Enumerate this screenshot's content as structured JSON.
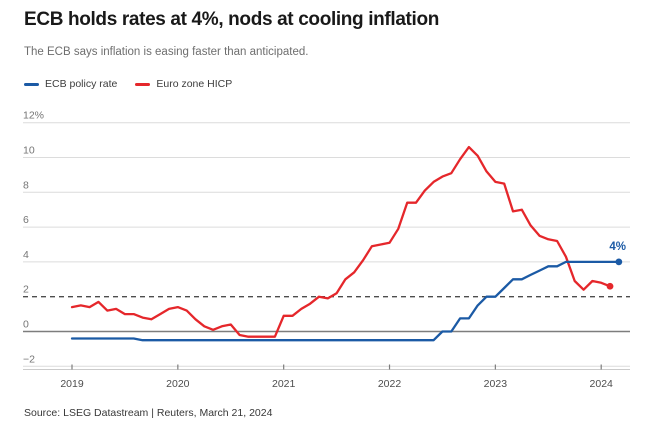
{
  "chart_data": {
    "type": "line",
    "title": "ECB holds rates at 4%, nods at cooling inflation",
    "subtitle": "The ECB says inflation is easing faster than anticipated.",
    "source": "Source: LSEG Datastream | Reuters, March 21, 2024",
    "x_unit": "month",
    "x_start": "2019-01",
    "x_tick_labels": [
      "2019",
      "2020",
      "2021",
      "2022",
      "2023",
      "2024"
    ],
    "y_ticks": [
      {
        "value": -2,
        "label": "−2"
      },
      {
        "value": 0,
        "label": "0"
      },
      {
        "value": 2,
        "label": "2"
      },
      {
        "value": 4,
        "label": "4"
      },
      {
        "value": 6,
        "label": "6"
      },
      {
        "value": 8,
        "label": "8"
      },
      {
        "value": 10,
        "label": "10"
      },
      {
        "value": 12,
        "label": "12%"
      }
    ],
    "ylim": [
      -2,
      12
    ],
    "grid": "horizontal-only",
    "zero_line": {
      "value": 0,
      "style": "solid-dark"
    },
    "reference_line": {
      "value": 2,
      "style": "dashed"
    },
    "legend_position": "top-left",
    "end_annotation": {
      "text": "4%",
      "series": "ECB policy rate"
    },
    "series": [
      {
        "name": "ECB policy rate",
        "color": "#1b5aa5",
        "end_dot": true,
        "values": [
          -0.4,
          -0.4,
          -0.4,
          -0.4,
          -0.4,
          -0.4,
          -0.4,
          -0.4,
          -0.5,
          -0.5,
          -0.5,
          -0.5,
          -0.5,
          -0.5,
          -0.5,
          -0.5,
          -0.5,
          -0.5,
          -0.5,
          -0.5,
          -0.5,
          -0.5,
          -0.5,
          -0.5,
          -0.5,
          -0.5,
          -0.5,
          -0.5,
          -0.5,
          -0.5,
          -0.5,
          -0.5,
          -0.5,
          -0.5,
          -0.5,
          -0.5,
          -0.5,
          -0.5,
          -0.5,
          -0.5,
          -0.5,
          -0.5,
          0,
          0,
          0.75,
          0.75,
          1.5,
          2,
          2,
          2.5,
          3,
          3,
          3.25,
          3.5,
          3.75,
          3.75,
          4,
          4,
          4,
          4,
          4,
          4,
          4
        ]
      },
      {
        "name": "Euro zone HICP",
        "color": "#e5272b",
        "end_dot": true,
        "values": [
          1.4,
          1.5,
          1.4,
          1.7,
          1.2,
          1.3,
          1.0,
          1.0,
          0.8,
          0.7,
          1.0,
          1.3,
          1.4,
          1.2,
          0.7,
          0.3,
          0.1,
          0.3,
          0.4,
          -0.2,
          -0.3,
          -0.3,
          -0.3,
          -0.3,
          0.9,
          0.9,
          1.3,
          1.6,
          2.0,
          1.9,
          2.2,
          3.0,
          3.4,
          4.1,
          4.9,
          5.0,
          5.1,
          5.9,
          7.4,
          7.4,
          8.1,
          8.6,
          8.9,
          9.1,
          9.9,
          10.6,
          10.1,
          9.2,
          8.6,
          8.5,
          6.9,
          7.0,
          6.1,
          5.5,
          5.3,
          5.2,
          4.3,
          2.9,
          2.4,
          2.9,
          2.8,
          2.6
        ]
      }
    ]
  }
}
